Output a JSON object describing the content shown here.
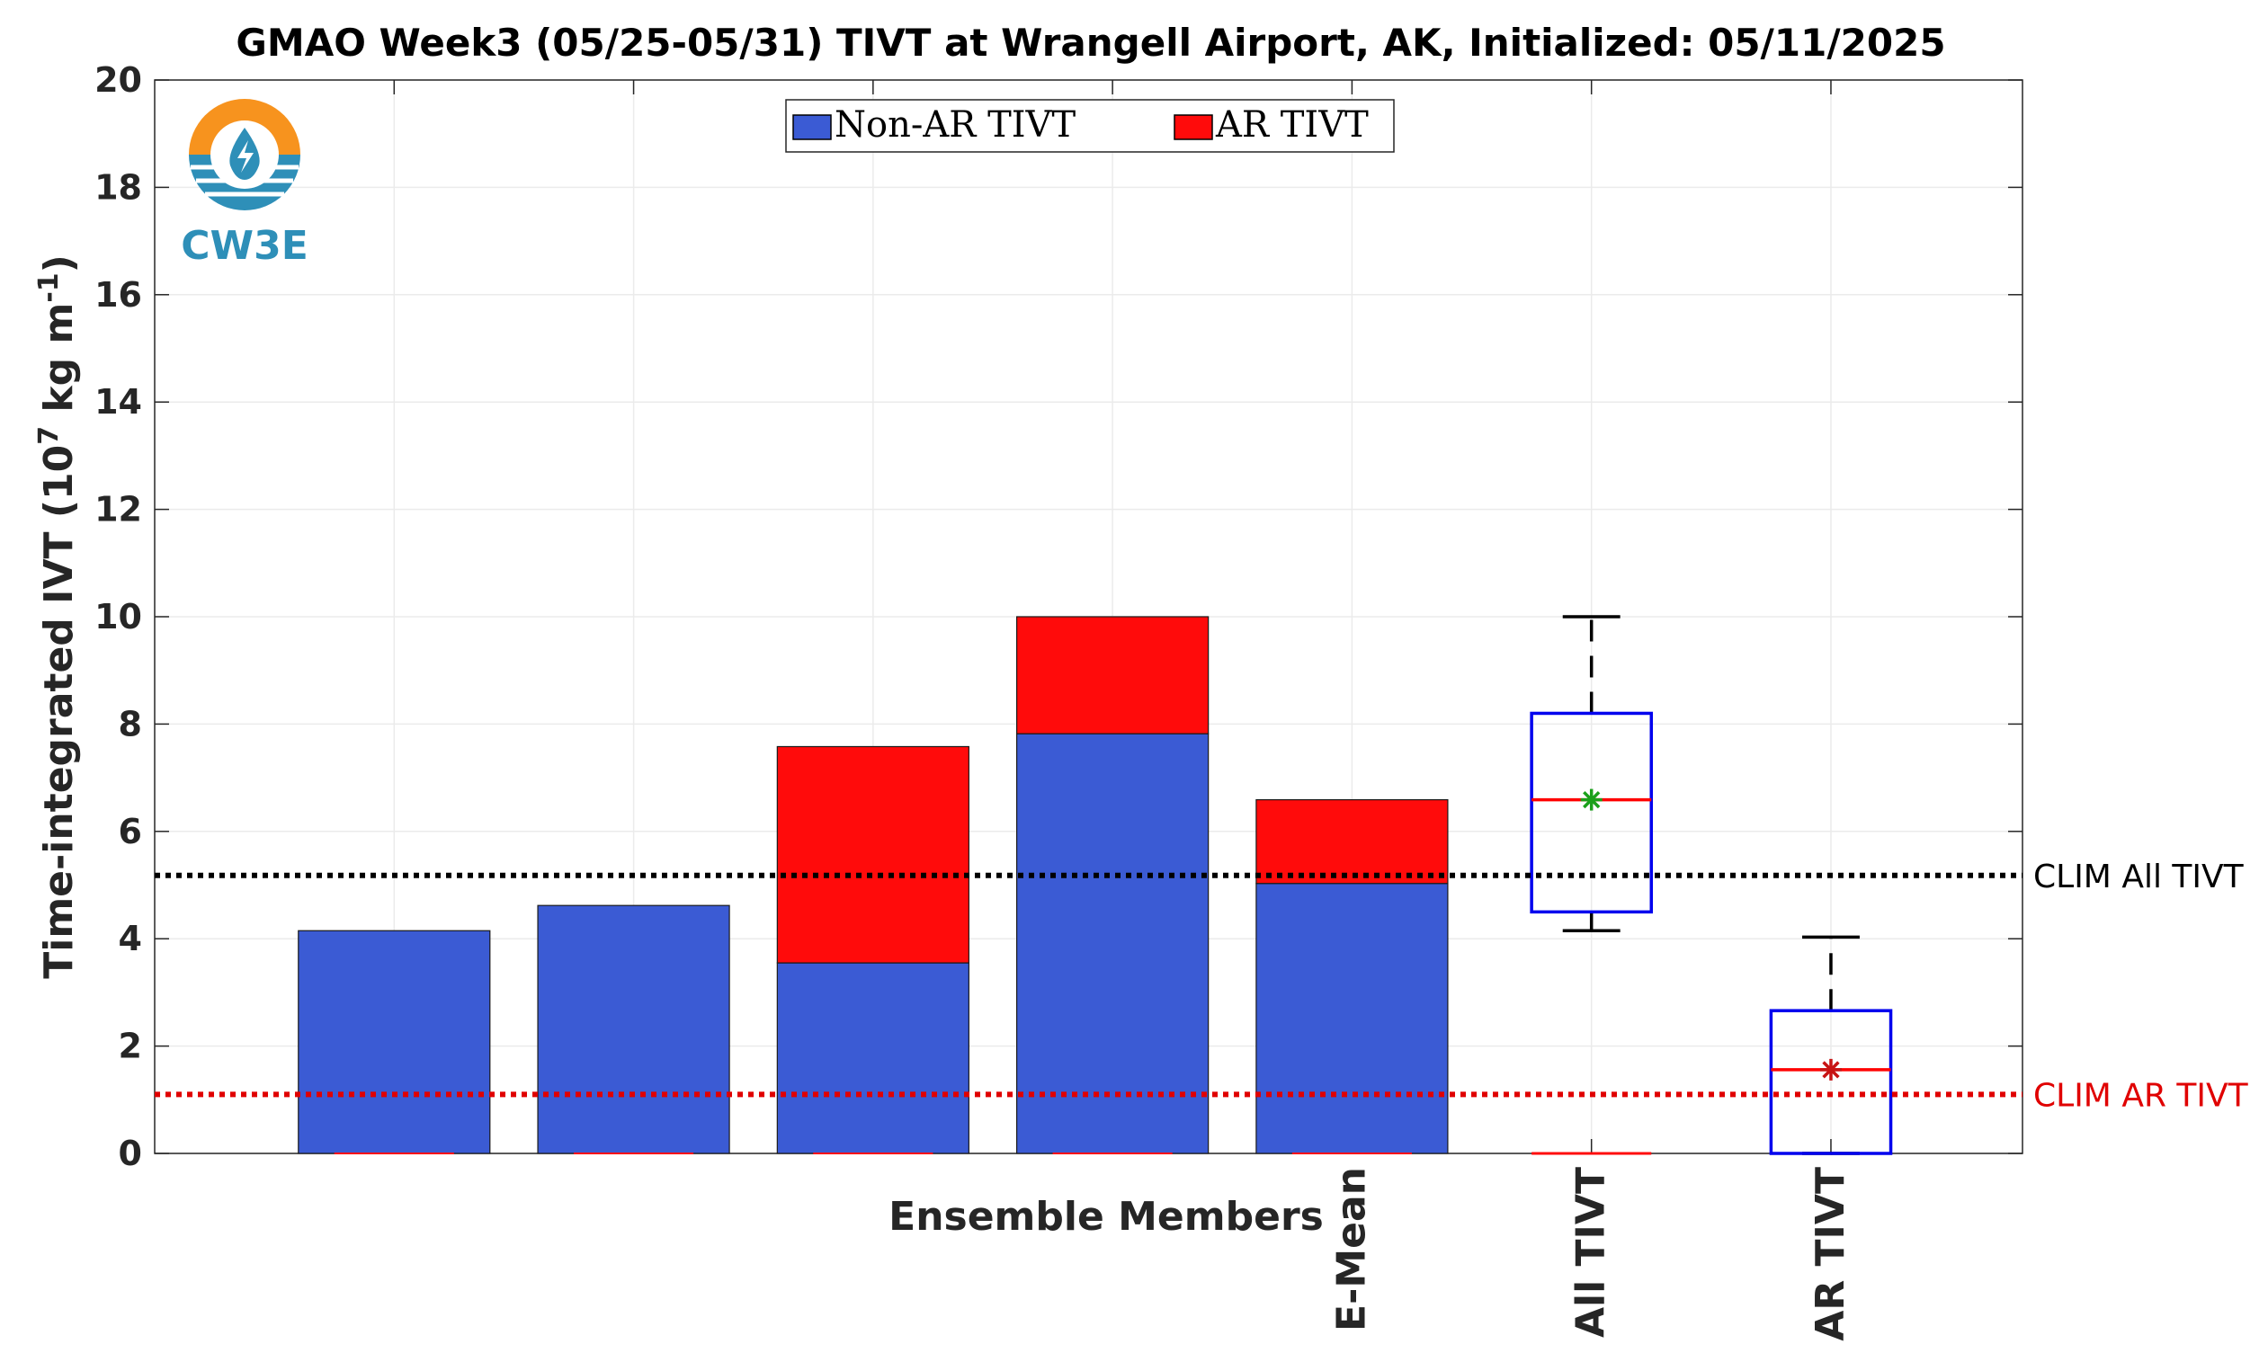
{
  "chart_data": {
    "type": "bar",
    "title": "GMAO Week3 (05/25-05/31) TIVT at Wrangell Airport, AK, Initialized: 05/11/2025",
    "ylabel_main": "Time-integrated IVT (10",
    "ylabel_exp": "7",
    "ylabel_mid": " kg m",
    "ylabel_exp2": "-1",
    "ylabel_end": ")",
    "xlabel": "Ensemble Members",
    "ylim": [
      0,
      20
    ],
    "yticks": [
      "0",
      "2",
      "4",
      "6",
      "8",
      "10",
      "12",
      "14",
      "16",
      "18",
      "20"
    ],
    "xlim": [
      0,
      7.8
    ],
    "bars": [
      {
        "x": 1,
        "label": "",
        "non_ar": 4.15,
        "ar": 0.0
      },
      {
        "x": 2,
        "label": "",
        "non_ar": 4.62,
        "ar": 0.0
      },
      {
        "x": 3,
        "label": "",
        "non_ar": 3.55,
        "ar": 4.03
      },
      {
        "x": 4,
        "label": "",
        "non_ar": 7.82,
        "ar": 2.18
      },
      {
        "x": 5,
        "label": "E-Mean",
        "non_ar": 5.03,
        "ar": 1.56
      }
    ],
    "series": [
      {
        "name": "Non-AR TIVT",
        "color": "#3b5bd4"
      },
      {
        "name": "AR TIVT",
        "color": "#ff0b0b"
      }
    ],
    "boxplots": [
      {
        "x": 6,
        "label": "All TIVT",
        "min": 4.15,
        "q1": 4.5,
        "median": 6.59,
        "q3": 8.2,
        "max": 10.0,
        "mean": 6.59,
        "mean_color": "#1aa01a"
      },
      {
        "x": 7,
        "label": "AR TIVT",
        "min": 0.0,
        "q1": 0.0,
        "median": 1.56,
        "q3": 2.66,
        "max": 4.03,
        "mean": 1.56,
        "mean_color": "#c81414"
      }
    ],
    "reference_lines": [
      {
        "label": "CLIM All TIVT",
        "value": 5.18,
        "color": "#000000"
      },
      {
        "label": "CLIM AR TIVT",
        "value": 1.1,
        "color": "#e00000"
      }
    ],
    "grid": true,
    "legend_position": "top-center",
    "logo_text": "CW3E"
  },
  "colors": {
    "non_ar": "#3b5bd4",
    "ar": "#ff0b0b",
    "box": "#0000ee",
    "median": "#ff0000",
    "whisker": "#000000",
    "logo_orange": "#f7931e",
    "logo_blue": "#2e8fb8"
  }
}
